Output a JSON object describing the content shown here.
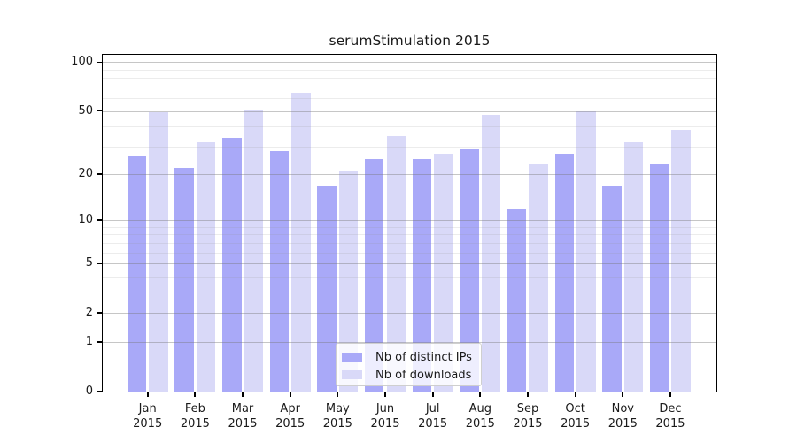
{
  "title": "serumStimulation 2015",
  "chart_data": {
    "type": "bar",
    "title": "serumStimulation 2015",
    "categories": [
      "Jan 2015",
      "Feb 2015",
      "Mar 2015",
      "Apr 2015",
      "May 2015",
      "Jun 2015",
      "Jul 2015",
      "Aug 2015",
      "Sep 2015",
      "Oct 2015",
      "Nov 2015",
      "Dec 2015"
    ],
    "x_tick_months": [
      "Jan",
      "Feb",
      "Mar",
      "Apr",
      "May",
      "Jun",
      "Jul",
      "Aug",
      "Sep",
      "Oct",
      "Nov",
      "Dec"
    ],
    "x_tick_year": "2015",
    "series": [
      {
        "name": "Nb of distinct IPs",
        "color": "#a9a9f8",
        "values": [
          26,
          22,
          34,
          28,
          17,
          25,
          25,
          29,
          12,
          27,
          17,
          23
        ]
      },
      {
        "name": "Nb of downloads",
        "color": "#d9d9f8",
        "values": [
          49,
          32,
          51,
          65,
          21,
          35,
          27,
          47,
          23,
          50,
          32,
          38
        ]
      }
    ],
    "yscale": "log1p",
    "y_ticks": [
      0,
      1,
      2,
      5,
      10,
      20,
      50,
      100
    ],
    "y_minor_gridlines": [
      3,
      4,
      6,
      7,
      8,
      9,
      30,
      40,
      60,
      70,
      80,
      90
    ],
    "ylim": [
      0,
      112
    ],
    "grid": true,
    "legend_position": "lower center",
    "background_color": "#ffffff",
    "text_color": "#1a1a1a"
  }
}
